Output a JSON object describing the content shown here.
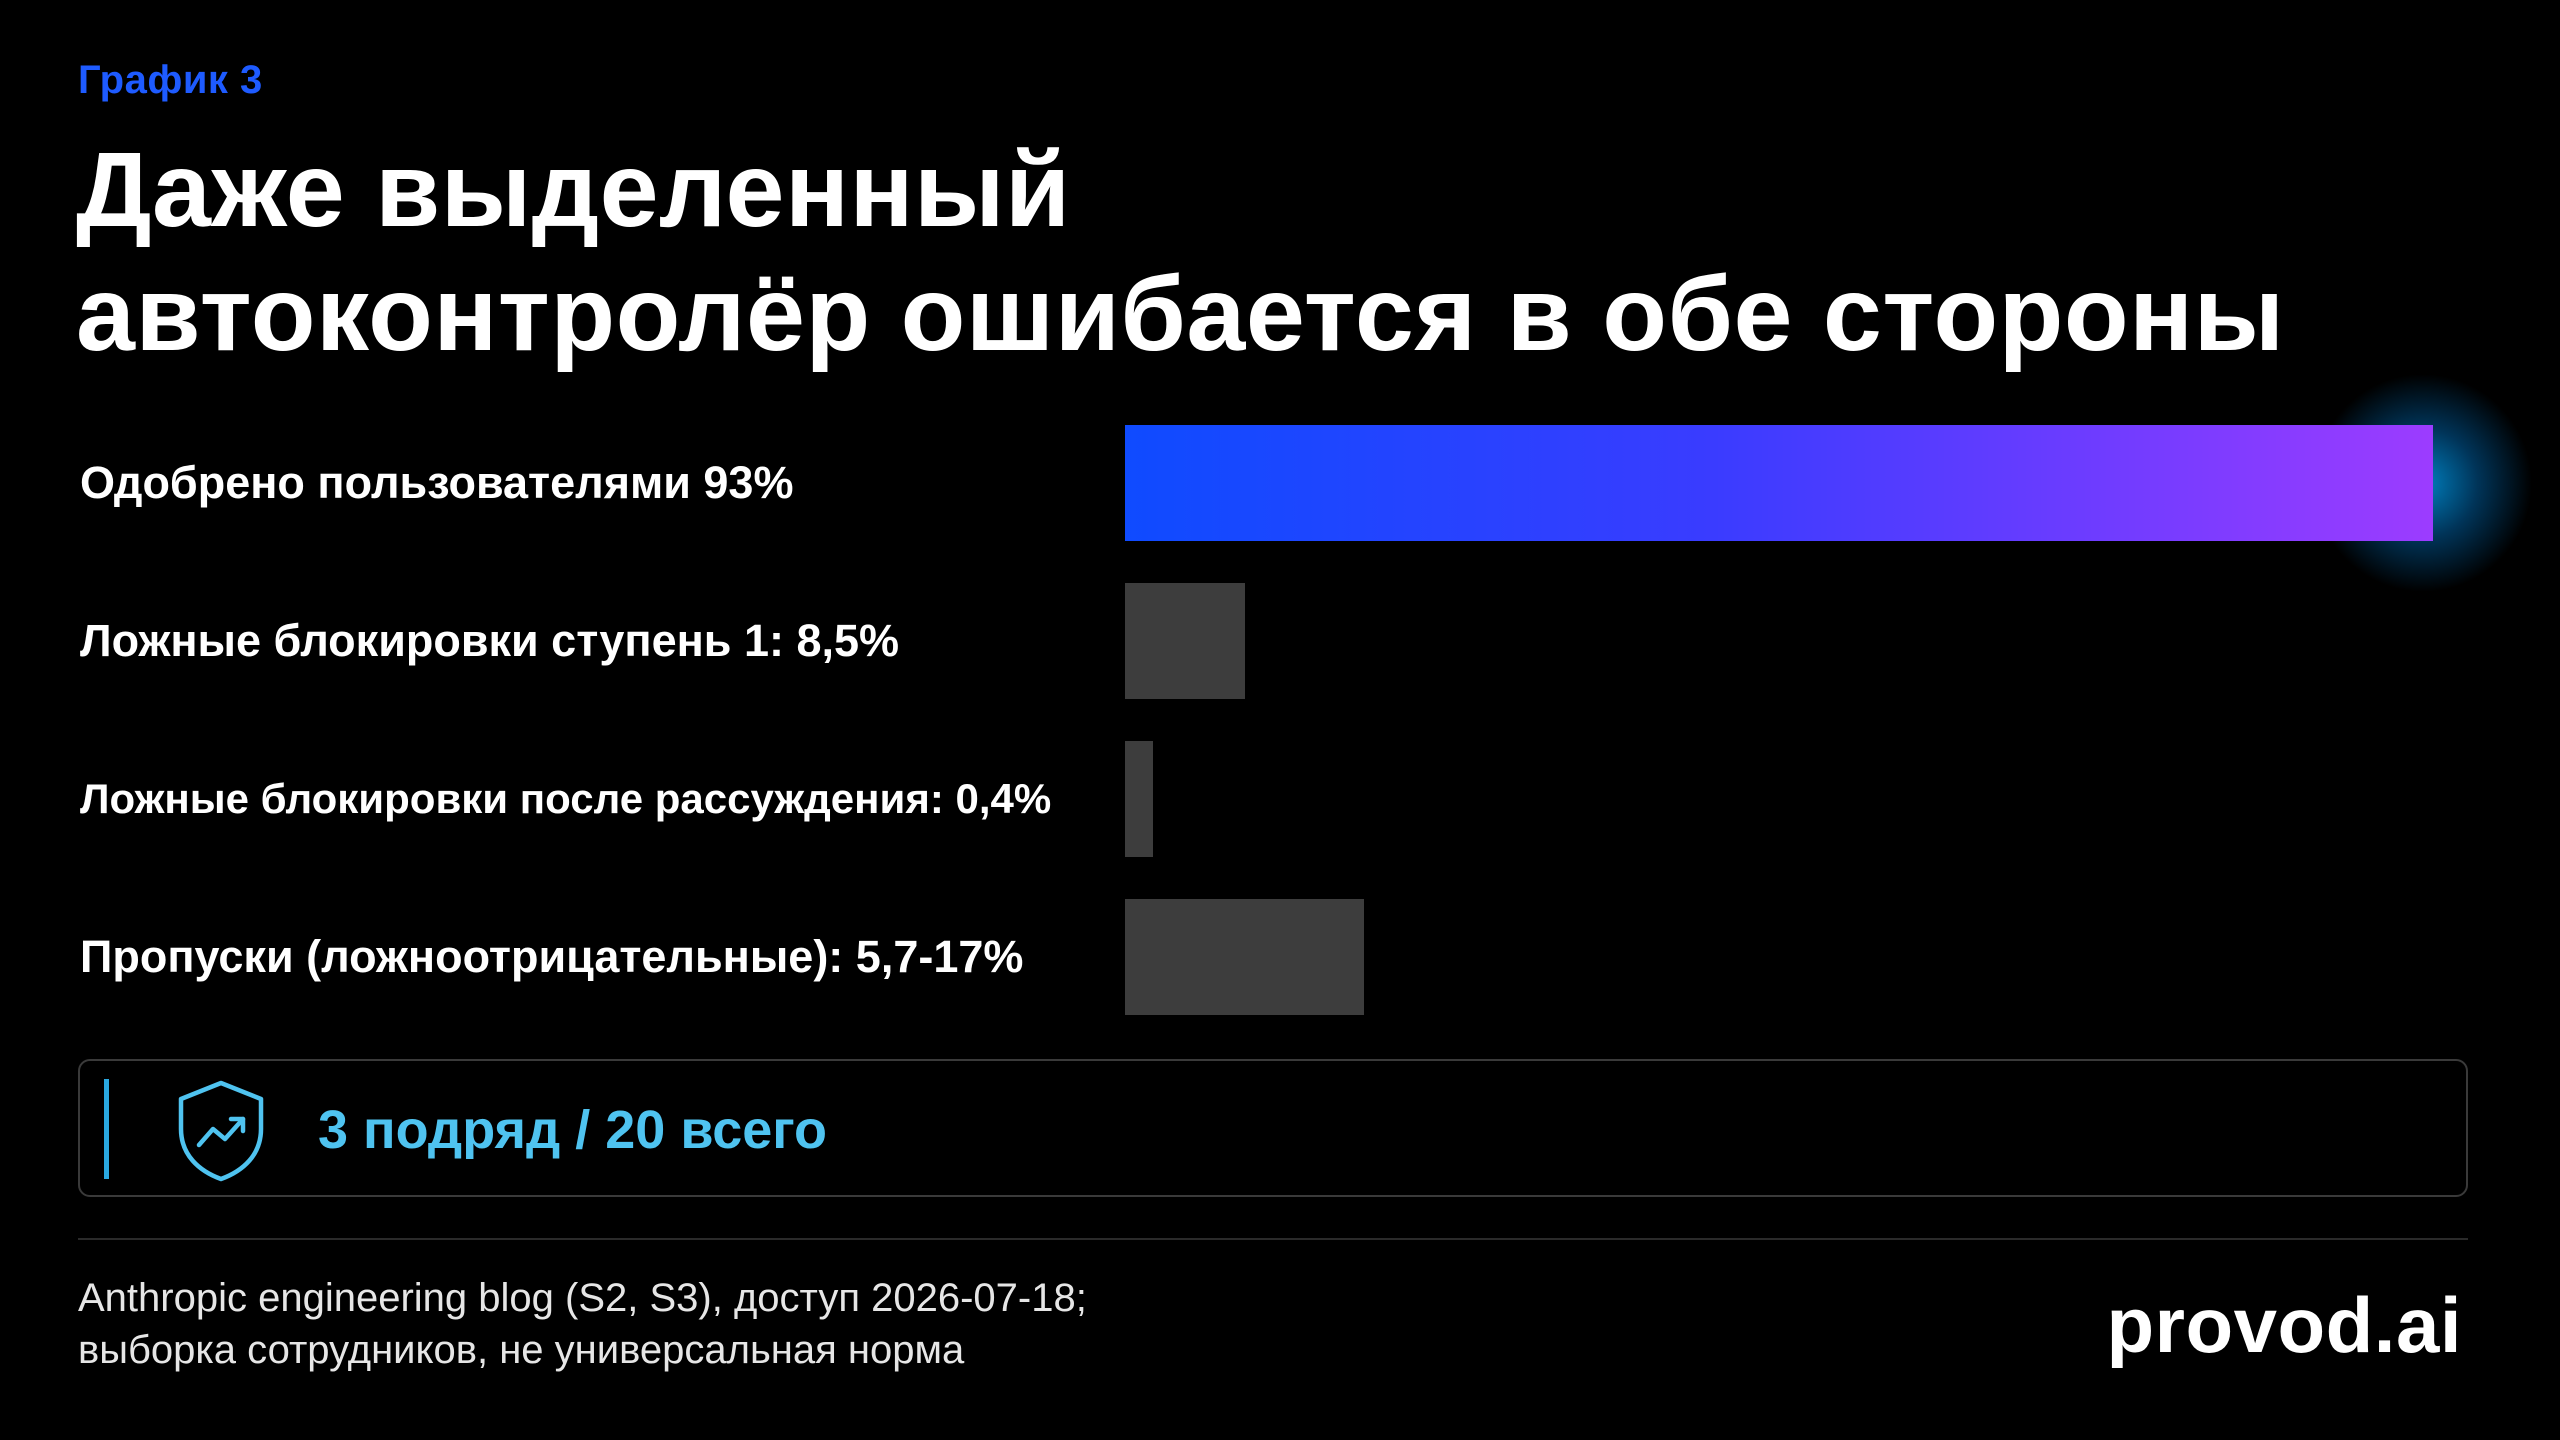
{
  "kicker": "График 3",
  "title_lines": [
    "Даже выделенный",
    "автоконтролёр ошибается в обе стороны"
  ],
  "chart_data": {
    "type": "bar",
    "orientation": "horizontal",
    "categories": [
      "Одобрено пользователями 93%",
      "Ложные блокировки ступень 1: 8,5%",
      "Ложные блокировки после рассуждения: 0,4%",
      "Пропуски (ложноотрицательные): 5,7-17%"
    ],
    "values": [
      93,
      8.5,
      0.4,
      17
    ],
    "ranges": [
      null,
      null,
      null,
      [
        5.7,
        17
      ]
    ],
    "xlim": [
      0,
      93
    ],
    "grid": false,
    "legend": "none",
    "highlight_index": 0,
    "colors": {
      "highlight_start": "#0f4bff",
      "highlight_end": "#9c3cff",
      "muted": "#3d3d3d"
    }
  },
  "callout": {
    "icon": "shield-trend-icon",
    "text": "3 подряд / 20 всего",
    "color": "#4fc3f0"
  },
  "footer": {
    "source_lines": [
      "Anthropic engineering blog (S2, S3), доступ 2026-07-18;",
      "выборка сотрудников, не универсальная норма"
    ],
    "brand": "provod.ai"
  }
}
